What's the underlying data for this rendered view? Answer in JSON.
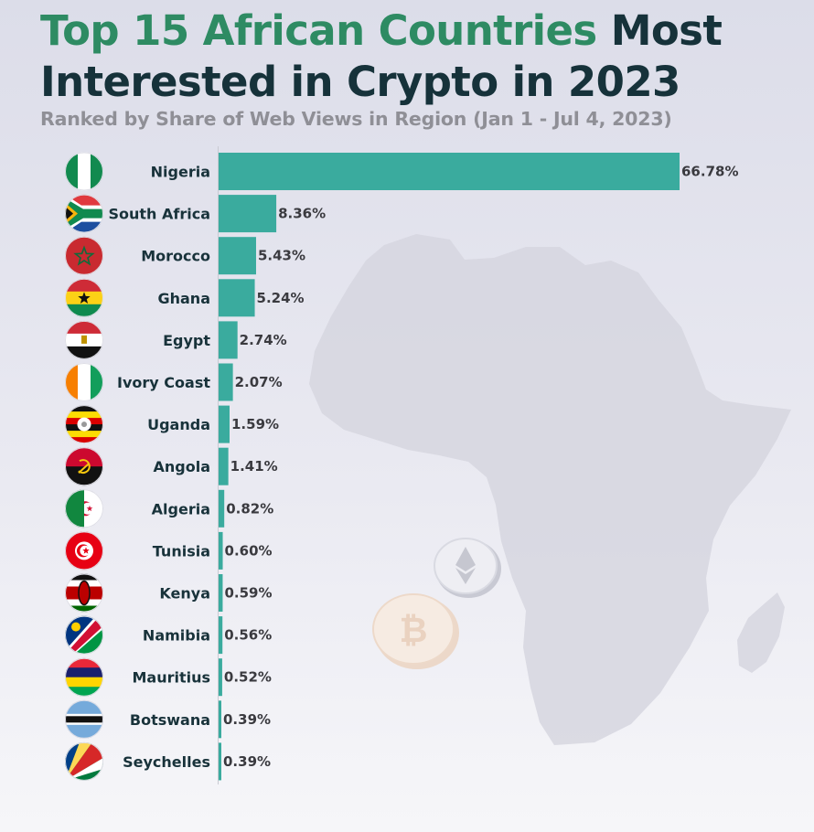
{
  "header": {
    "title_highlight": "Top 15 African Countries",
    "title_rest_1": " Most",
    "title_line2": "Interested in Crypto in 2023",
    "subtitle": "Ranked by Share of Web Views in Region (Jan 1 - Jul 4, 2023)"
  },
  "colors": {
    "bar": "#3aab9e",
    "title_highlight": "#2e8b63",
    "title_dark": "#16323a",
    "subtitle": "#8f8f96"
  },
  "chart_data": {
    "type": "bar",
    "orientation": "horizontal",
    "title": "Top 15 African Countries Most Interested in Crypto in 2023",
    "subtitle": "Ranked by Share of Web Views in Region (Jan 1 - Jul 4, 2023)",
    "categories": [
      "Nigeria",
      "South Africa",
      "Morocco",
      "Ghana",
      "Egypt",
      "Ivory Coast",
      "Uganda",
      "Angola",
      "Algeria",
      "Tunisia",
      "Kenya",
      "Namibia",
      "Mauritius",
      "Botswana",
      "Seychelles"
    ],
    "values": [
      66.78,
      8.36,
      5.43,
      5.24,
      2.74,
      2.07,
      1.59,
      1.41,
      0.82,
      0.6,
      0.59,
      0.56,
      0.52,
      0.39,
      0.39
    ],
    "value_labels": [
      "66.78%",
      "8.36%",
      "5.43%",
      "5.24%",
      "2.74%",
      "2.07%",
      "1.59%",
      "1.41%",
      "0.82%",
      "0.60%",
      "0.59%",
      "0.56%",
      "0.52%",
      "0.39%",
      "0.39%"
    ],
    "flag_icons": [
      "nigeria-flag-icon",
      "south-africa-flag-icon",
      "morocco-flag-icon",
      "ghana-flag-icon",
      "egypt-flag-icon",
      "ivory-coast-flag-icon",
      "uganda-flag-icon",
      "angola-flag-icon",
      "algeria-flag-icon",
      "tunisia-flag-icon",
      "kenya-flag-icon",
      "namibia-flag-icon",
      "mauritius-flag-icon",
      "botswana-flag-icon",
      "seychelles-flag-icon"
    ],
    "xlim": [
      0,
      66.78
    ],
    "xlabel": "",
    "ylabel": "",
    "grid": false,
    "legend": "none"
  }
}
